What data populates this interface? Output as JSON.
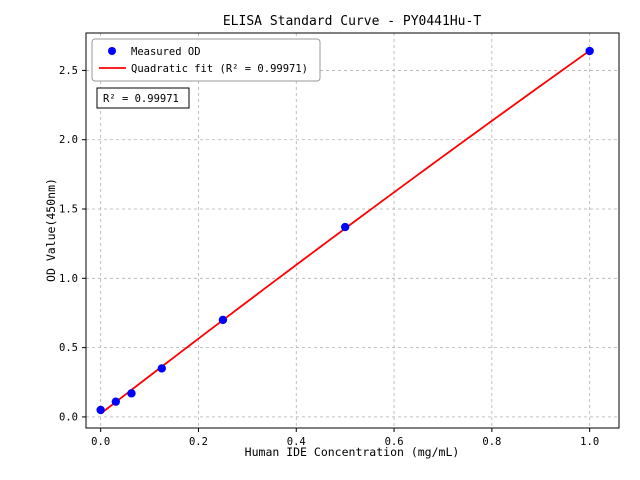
{
  "figure": {
    "background": "#ffffff"
  },
  "chart_data": {
    "type": "scatter",
    "title": "ELISA Standard Curve - PY0441Hu-T",
    "xlabel": "Human IDE Concentration (mg/mL)",
    "ylabel": "OD Value(450nm)",
    "xlim": [
      -0.03,
      1.06
    ],
    "ylim": [
      -0.08,
      2.77
    ],
    "x_ticks": [
      0.0,
      0.2,
      0.4,
      0.6,
      0.8,
      1.0
    ],
    "y_ticks": [
      0.0,
      0.5,
      1.0,
      1.5,
      2.0,
      2.5
    ],
    "grid": true,
    "grid_style": "dashed",
    "series": [
      {
        "name": "Measured OD",
        "type": "scatter",
        "color": "#0000ff",
        "x": [
          0.0,
          0.031,
          0.063,
          0.125,
          0.25,
          0.5,
          1.0
        ],
        "y": [
          0.05,
          0.11,
          0.17,
          0.35,
          0.7,
          1.37,
          2.64
        ]
      },
      {
        "name": "Quadratic fit (R² = 0.99971)",
        "type": "quadratic-fit",
        "color": "#ff0000"
      }
    ],
    "legend": {
      "position": "upper-left",
      "entries": [
        "Measured OD",
        "Quadratic fit (R² = 0.99971)"
      ]
    },
    "annotation": "R² = 0.99971",
    "r_squared": 0.99971
  },
  "colors": {
    "point": "#0000ff",
    "fit_line": "#ff0000",
    "grid": "#b0b0b0",
    "axis": "#000000",
    "legend_border": "#999999",
    "annotation_border": "#000000"
  }
}
